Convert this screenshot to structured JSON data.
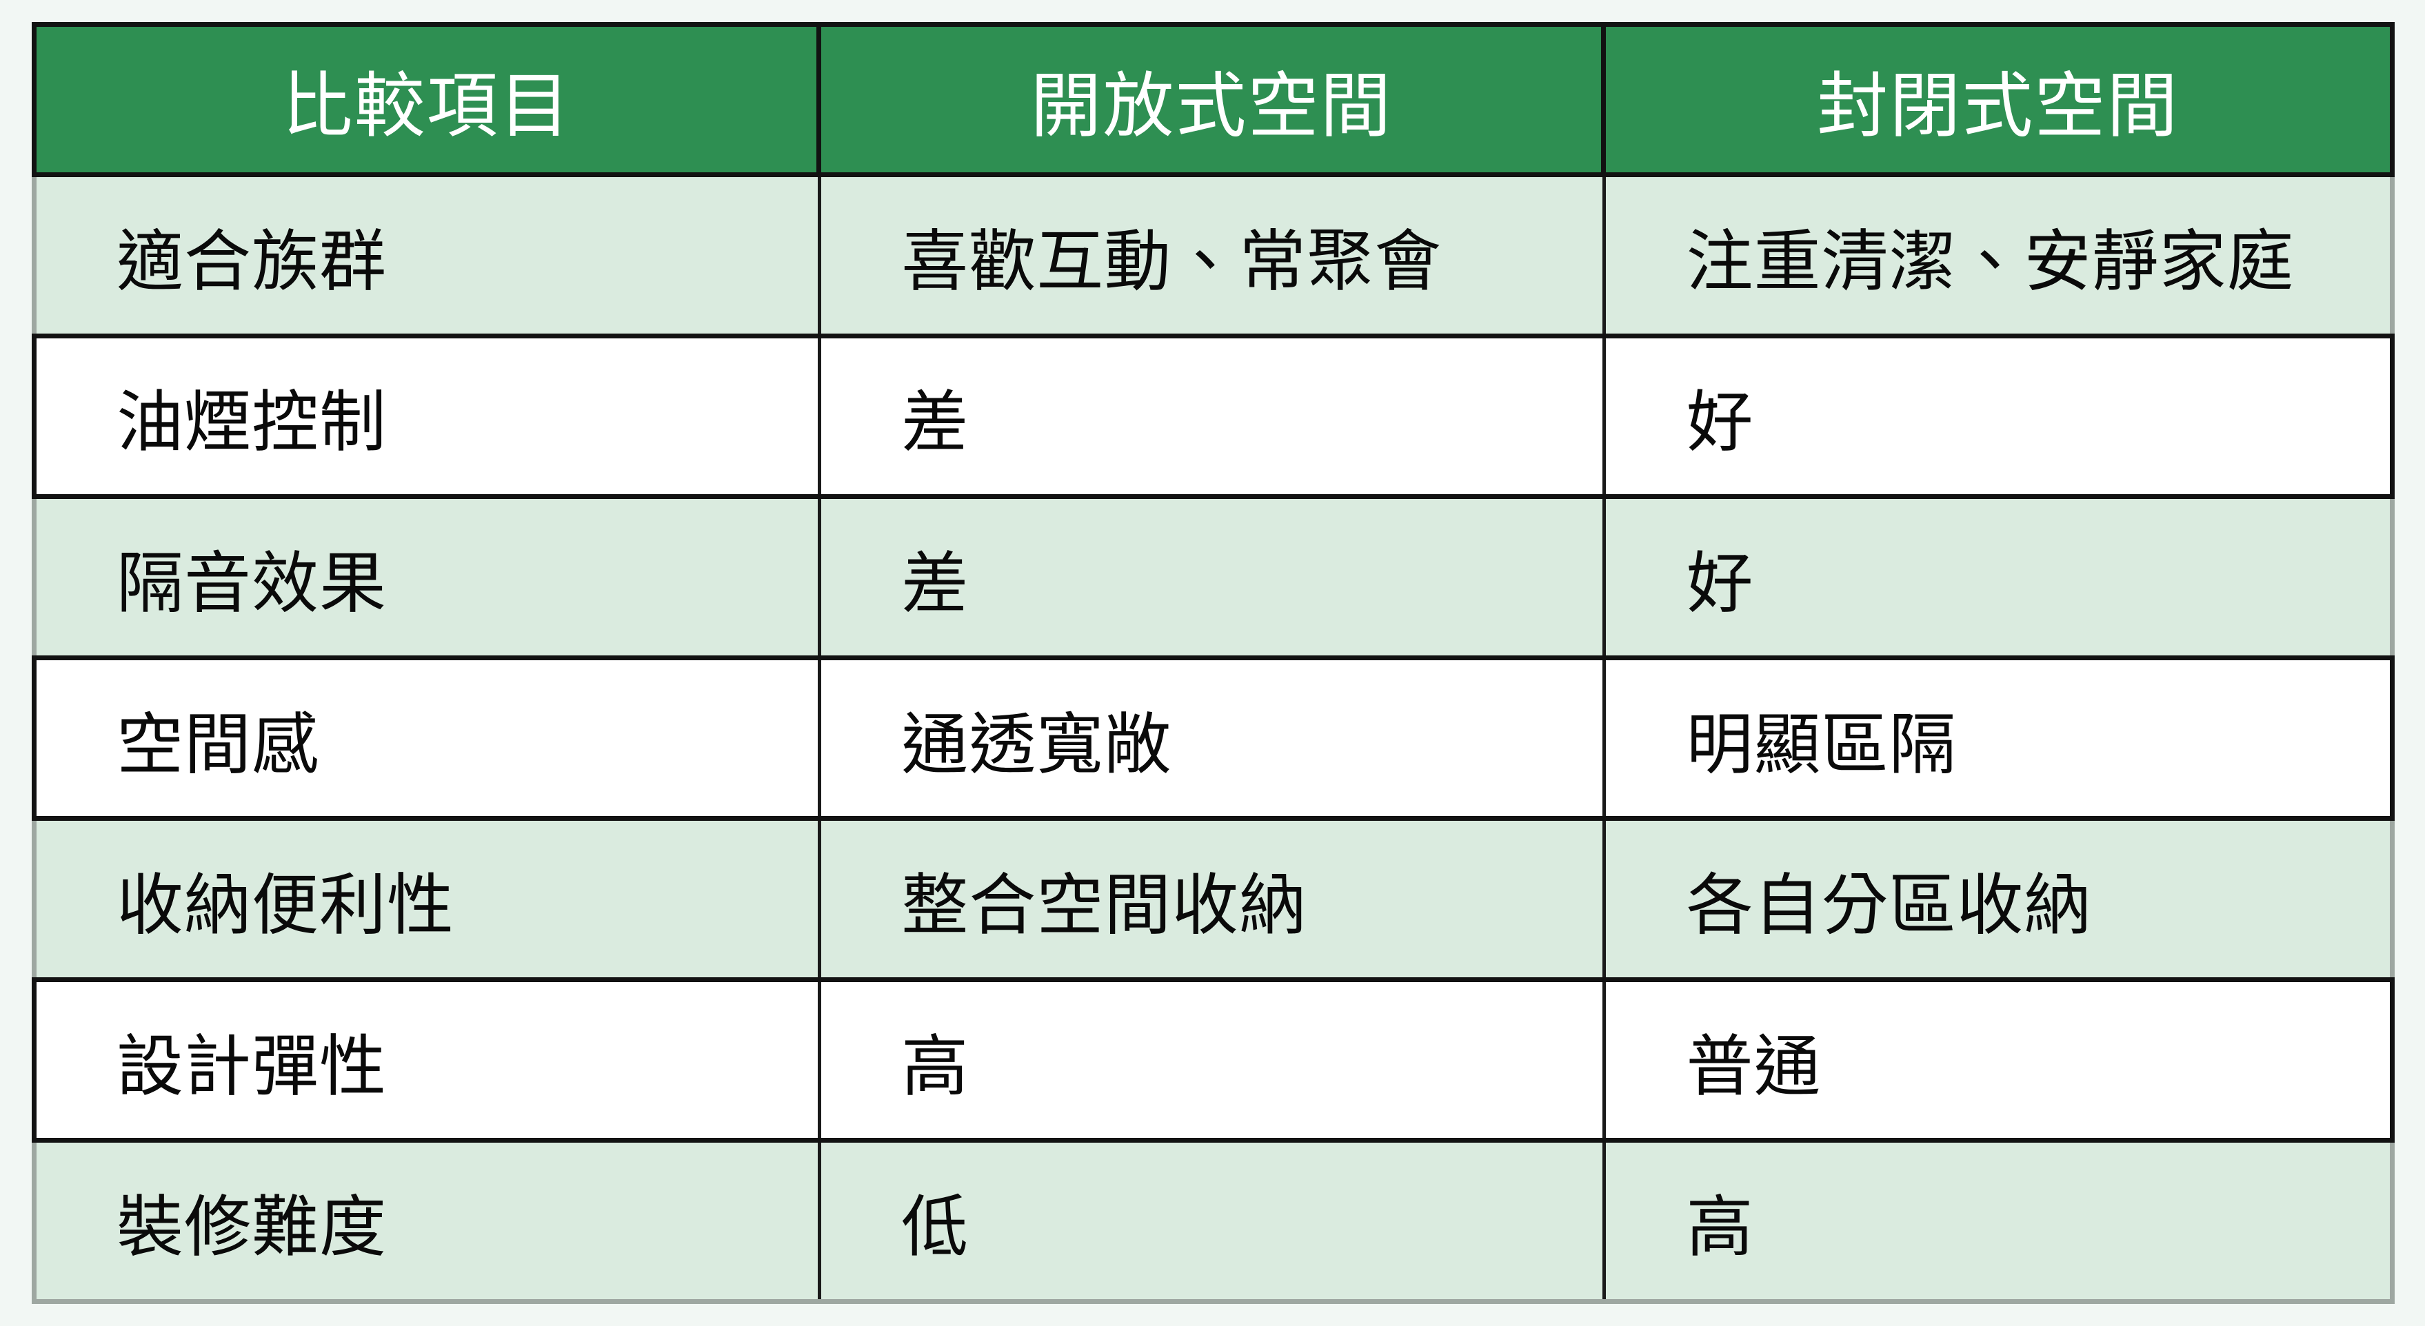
{
  "page": {
    "background_color": "#F2F7F4"
  },
  "colors": {
    "header_green": "#2E8F52",
    "row_light_green": "#DAEBDF",
    "row_white": "#FFFFFF",
    "border_black": "#121212",
    "frame_gray": "#9EA7A1",
    "header_text": "#FFFFFF",
    "body_text": "#0A0A0A"
  },
  "chart_data": {
    "type": "table",
    "columns": [
      "比較項目",
      "開放式空間",
      "封閉式空間"
    ],
    "rows": [
      [
        "適合族群",
        "喜歡互動、常聚會",
        "注重清潔、安靜家庭"
      ],
      [
        "油煙控制",
        "差",
        "好"
      ],
      [
        "隔音效果",
        "差",
        "好"
      ],
      [
        "空間感",
        "通透寬敞",
        "明顯區隔"
      ],
      [
        "收納便利性",
        "整合空間收納",
        "各自分區收納"
      ],
      [
        "設計彈性",
        "高",
        "普通"
      ],
      [
        "裝修難度",
        "低",
        "高"
      ]
    ],
    "layout": {
      "header_background": "#2E8F52",
      "zebra_striping": "light-green / white alternating",
      "first_row_after_header": "light-green"
    }
  }
}
